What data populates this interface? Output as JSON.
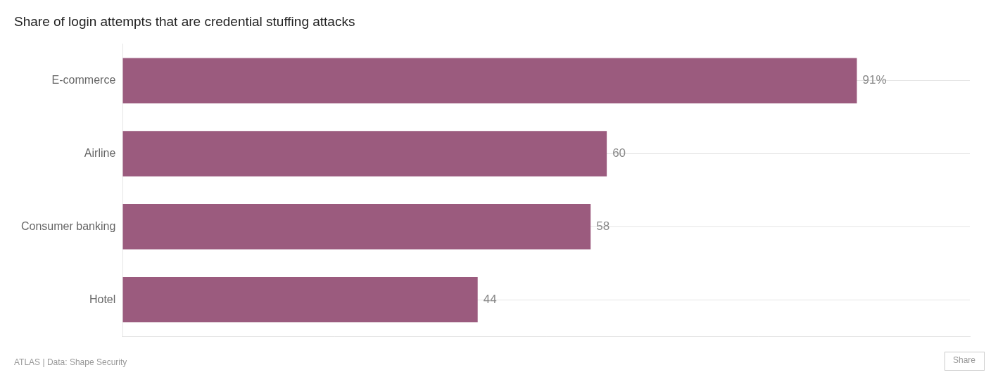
{
  "chart_data": {
    "type": "bar",
    "orientation": "horizontal",
    "title": "Share of login attempts that are credential stuffing attacks",
    "categories": [
      "Hotel",
      "Consumer banking",
      "Airline",
      "E-commerce"
    ],
    "values": [
      44,
      58,
      60,
      91
    ],
    "value_labels": [
      "44",
      "58",
      "60",
      "91%"
    ],
    "data_labels": true,
    "color": "#9b5b7e",
    "xlim": [
      0,
      105
    ],
    "tick_labels": "y",
    "grid": true,
    "annotations": [
      "ATLAS | Data: Shape Security",
      "Share"
    ]
  }
}
